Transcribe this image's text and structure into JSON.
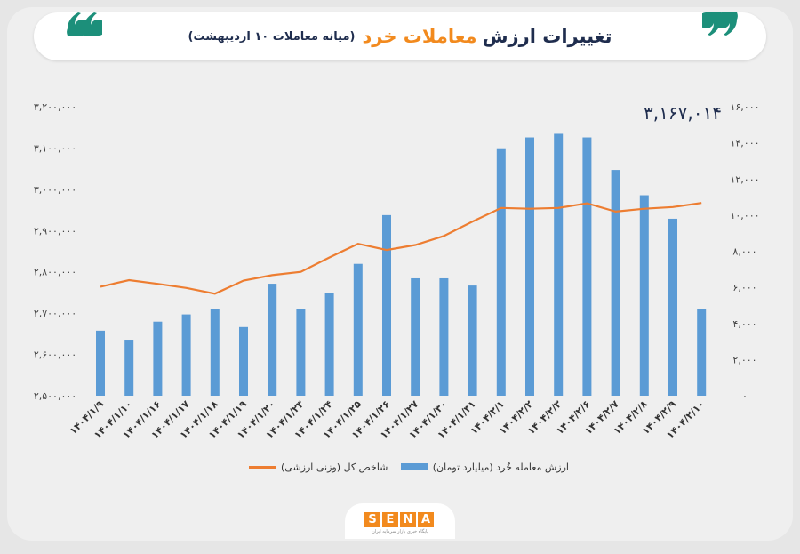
{
  "title": {
    "main_prefix": "تغییرات ارزش",
    "main_highlight": "معاملات خرد",
    "subtitle": "(میانه معاملات ۱۰ اردیبهشت)"
  },
  "colors": {
    "bar": "#5b9bd5",
    "line": "#ed7d31",
    "accent": "#f28a1e",
    "navy": "#1f2d4e",
    "quote": "#1c8f7a"
  },
  "chart_data": {
    "type": "bar",
    "categories": [
      "۱۴۰۴/۱/۹",
      "۱۴۰۴/۱/۱۰",
      "۱۴۰۴/۱/۱۶",
      "۱۴۰۴/۱/۱۷",
      "۱۴۰۴/۱/۱۸",
      "۱۴۰۴/۱/۱۹",
      "۱۴۰۴/۱/۲۰",
      "۱۴۰۴/۱/۲۳",
      "۱۴۰۴/۱/۲۴",
      "۱۴۰۴/۱/۲۵",
      "۱۴۰۴/۱/۲۶",
      "۱۴۰۴/۱/۲۷",
      "۱۴۰۴/۱/۳۰",
      "۱۴۰۴/۱/۳۱",
      "۱۴۰۴/۲/۱",
      "۱۴۰۴/۲/۲",
      "۱۴۰۴/۲/۳",
      "۱۴۰۴/۲/۶",
      "۱۴۰۴/۲/۷",
      "۱۴۰۴/۲/۸",
      "۱۴۰۴/۲/۹",
      "۱۴۰۴/۲/۱۰"
    ],
    "series": [
      {
        "name": "ارزش معامله خُرد (میلیارد تومان)",
        "type": "bar",
        "axis": "right",
        "values": [
          3600,
          3100,
          4100,
          4500,
          4800,
          3800,
          6200,
          4800,
          5700,
          7300,
          10000,
          6500,
          6500,
          6100,
          13700,
          14300,
          14500,
          14300,
          12500,
          11100,
          9800,
          4800
        ]
      },
      {
        "name": "شاخص کل (وزنی ارزشی)",
        "type": "line",
        "axis": "left",
        "values": [
          2764000,
          2780000,
          2771000,
          2761000,
          2747000,
          2779000,
          2792000,
          2800000,
          2835000,
          2868000,
          2853000,
          2865000,
          2887000,
          2922000,
          2955000,
          2953000,
          2955000,
          2966000,
          2946000,
          2953000,
          2957000,
          2967000
        ]
      }
    ],
    "y_left": {
      "ylim": [
        2500000,
        3200000
      ],
      "ticks": [
        "۲,۵۰۰,۰۰۰",
        "۲,۶۰۰,۰۰۰",
        "۲,۷۰۰,۰۰۰",
        "۲,۸۰۰,۰۰۰",
        "۲,۹۰۰,۰۰۰",
        "۳,۰۰۰,۰۰۰",
        "۳,۱۰۰,۰۰۰",
        "۳,۲۰۰,۰۰۰"
      ]
    },
    "y_right": {
      "ylim": [
        0,
        16000
      ],
      "ticks": [
        "۰",
        "۲,۰۰۰",
        "۴,۰۰۰",
        "۶,۰۰۰",
        "۸,۰۰۰",
        "۱۰,۰۰۰",
        "۱۲,۰۰۰",
        "۱۴,۰۰۰",
        "۱۶,۰۰۰"
      ]
    },
    "annotation": "۳,۱۶۷,۰۱۴",
    "legend_position": "bottom",
    "grid": false
  },
  "logo": {
    "letters": [
      "S",
      "E",
      "N",
      "A"
    ],
    "tagline": "پایگاه خبری بازار سرمایه ایران"
  }
}
